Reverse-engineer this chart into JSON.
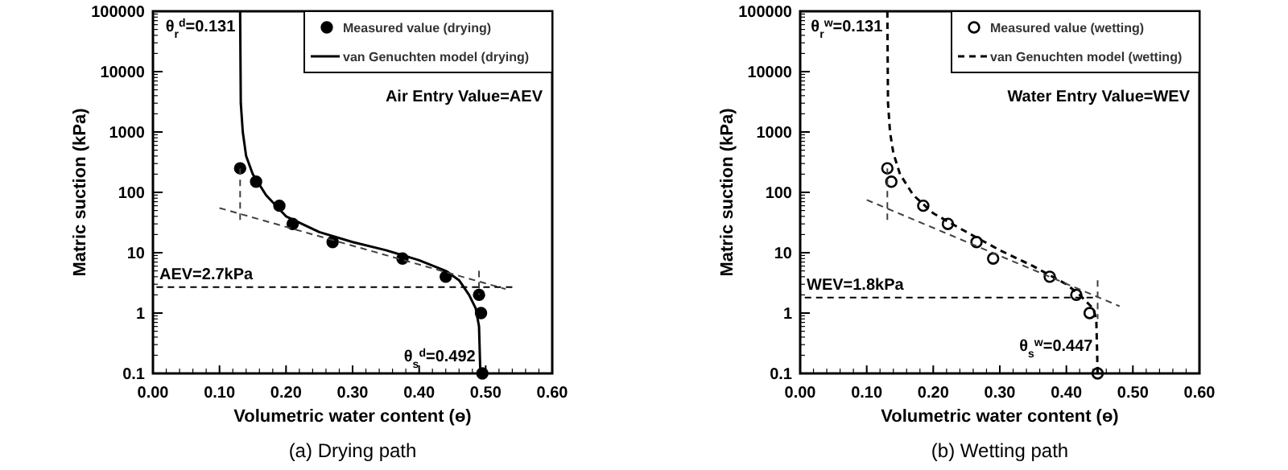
{
  "chart_data": [
    {
      "type": "scatter",
      "title": "(a) Drying path",
      "xlabel": "Volumetric water content (ɵ)",
      "ylabel": "Matric suction (kPa)",
      "log": "y",
      "legend": "top right",
      "xlim": [
        0,
        0.6
      ],
      "ylim": [
        0.1,
        100000
      ],
      "xticks": [
        {
          "value": 0,
          "label": "0.00"
        },
        {
          "value": 0.1,
          "label": "0.10"
        },
        {
          "value": 0.2,
          "label": "0.20"
        },
        {
          "value": 0.3,
          "label": "0.30"
        },
        {
          "value": 0.4,
          "label": "0.40"
        },
        {
          "value": 0.5,
          "label": "0.50"
        },
        {
          "value": 0.6,
          "label": "0.60"
        }
      ],
      "yticks": [
        0.1,
        1,
        10,
        100,
        1000,
        10000,
        100000
      ],
      "annotations": [
        "Air Entry Value=AEV",
        {
          "text": "θ$_{r}$$^{d}$=0.131",
          "x": 0.131,
          "y": 60000
        },
        {
          "text": "θ$_{s}$$^{d}$=0.492",
          "x": 0.492,
          "y": 0.2
        },
        {
          "text": "AEV=2.7kPa",
          "x": 0,
          "y": 2.7
        }
      ],
      "series": [
        {
          "name": "Measured value (drying)",
          "marker": "circle",
          "color": "#000000",
          "x": [
            0.131,
            0.155,
            0.19,
            0.21,
            0.27,
            0.375,
            0.44,
            0.49,
            0.493,
            0.495
          ],
          "values": [
            250,
            150,
            60,
            30,
            15,
            8,
            4,
            2,
            1,
            0.1
          ]
        },
        {
          "name": "van Genuchten model (drying)",
          "type": "line",
          "line_style": "solid",
          "color": "#000000",
          "x": [
            0.131,
            0.132,
            0.135,
            0.14,
            0.15,
            0.17,
            0.2,
            0.25,
            0.3,
            0.35,
            0.4,
            0.44,
            0.46,
            0.475,
            0.485,
            0.49,
            0.492
          ],
          "values": [
            100000,
            3000,
            1000,
            400,
            200,
            90,
            40,
            22,
            15,
            11,
            7.5,
            5,
            3.5,
            2,
            1.2,
            0.6,
            0.1
          ]
        },
        {
          "type": "line",
          "line_style": "dashed",
          "color": "#404040",
          "x": [
            0.1,
            0.53
          ],
          "values": [
            55,
            2.5
          ]
        },
        {
          "type": "line",
          "line_style": "dashed",
          "color": "#404040",
          "x": [
            0.131,
            0.131
          ],
          "values": [
            250,
            35
          ]
        },
        {
          "type": "line",
          "line_style": "dashed",
          "color": "#404040",
          "x": [
            0.49,
            0.49
          ],
          "values": [
            5,
            2
          ]
        },
        {
          "type": "line",
          "line_style": "dashed",
          "color": "#000000",
          "x": [
            0.54,
            0
          ],
          "values": [
            2.7,
            2.7
          ]
        }
      ]
    },
    {
      "type": "scatter",
      "title": "(b) Wetting path",
      "xlabel": "Volumetric water content (ɵ)",
      "ylabel": "Matric suction (kPa)",
      "log": "y",
      "legend": "top right",
      "xlim": [
        0,
        0.6
      ],
      "ylim": [
        0.1,
        100000
      ],
      "xticks": [
        {
          "value": 0,
          "label": "0.00"
        },
        {
          "value": 0.1,
          "label": "0.10"
        },
        {
          "value": 0.2,
          "label": "0.20"
        },
        {
          "value": 0.3,
          "label": "0.30"
        },
        {
          "value": 0.4,
          "label": "0.40"
        },
        {
          "value": 0.5,
          "label": "0.50"
        },
        {
          "value": 0.6,
          "label": "0.60"
        }
      ],
      "yticks": [
        0.1,
        1,
        10,
        100,
        1000,
        10000,
        100000
      ],
      "annotations": [
        "Water Entry Value=WEV",
        {
          "text": "θ$_{r}$$^{w}$=0.131",
          "x": 0.131,
          "y": 60000
        },
        {
          "text": "θ$_{s}$$^{w}$=0.447",
          "x": 0.447,
          "y": 0.3
        },
        {
          "text": "WEV=1.8kPa",
          "x": 0,
          "y": 1.8
        }
      ],
      "series": [
        {
          "name": "Measured value (wetting)",
          "marker": "circle",
          "color": "#ffffff",
          "x": [
            0.131,
            0.137,
            0.185,
            0.222,
            0.265,
            0.29,
            0.375,
            0.415,
            0.435,
            0.447
          ],
          "values": [
            250,
            150,
            60,
            30,
            15,
            8,
            4,
            2,
            1,
            0.1
          ]
        },
        {
          "name": "van Genuchten model (wetting)",
          "type": "line",
          "line_style": "dashed",
          "color": "#000000",
          "x": [
            0.131,
            0.132,
            0.135,
            0.14,
            0.15,
            0.17,
            0.2,
            0.25,
            0.3,
            0.35,
            0.4,
            0.42,
            0.44,
            0.445,
            0.447
          ],
          "values": [
            100000,
            3000,
            1000,
            450,
            200,
            90,
            45,
            22,
            11,
            6,
            3,
            2,
            1.2,
            0.8,
            0.1
          ]
        },
        {
          "type": "line",
          "line_style": "dashed",
          "color": "#404040",
          "x": [
            0.1,
            0.48
          ],
          "values": [
            75,
            1.3
          ]
        },
        {
          "type": "line",
          "line_style": "dashed",
          "color": "#404040",
          "x": [
            0.131,
            0.131
          ],
          "values": [
            250,
            35
          ]
        },
        {
          "type": "line",
          "line_style": "dashed",
          "color": "#404040",
          "x": [
            0.447,
            0.447
          ],
          "values": [
            3.5,
            0.8
          ]
        },
        {
          "type": "line",
          "line_style": "dashed",
          "color": "#000000",
          "x": [
            0.44,
            0
          ],
          "values": [
            1.8,
            1.8
          ]
        }
      ]
    }
  ]
}
